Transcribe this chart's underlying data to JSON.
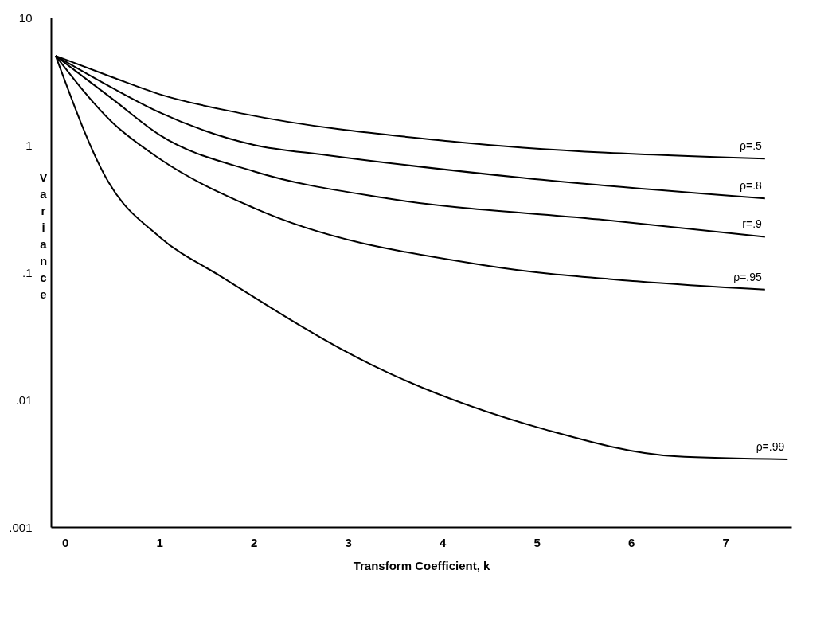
{
  "chart_data": {
    "type": "line",
    "xlabel": "Transform Coefficient, k",
    "ylabel": "Variance",
    "log": "y",
    "grid": false,
    "legend": false,
    "marker": "none",
    "line_style": "solid",
    "xlim": [
      -0.15,
      7.7
    ],
    "xticks": [
      0,
      1,
      2,
      3,
      4,
      5,
      6,
      7
    ],
    "ylim": [
      0.001,
      10
    ],
    "yticks": [
      10,
      1,
      {
        "value": 0.1,
        "label": ".1"
      },
      {
        "value": 0.01,
        "label": ".01"
      },
      {
        "value": 0.001,
        "label": ".001"
      }
    ],
    "series": [
      {
        "name": "ρ=.5",
        "color": "#000000",
        "x": [
          -0.1,
          0.5,
          1,
          1.9,
          4.06,
          7.42
        ],
        "values": [
          5,
          3.4,
          2.5,
          1.75,
          1.07,
          0.78
        ]
      },
      {
        "name": "ρ=.8",
        "color": "#000000",
        "x": [
          -0.1,
          0.5,
          1,
          2,
          2.78,
          4.86,
          7.42
        ],
        "values": [
          5,
          2.8,
          1.8,
          1.0,
          0.83,
          0.55,
          0.38
        ]
      },
      {
        "name": "r=.9",
        "color": "#000000",
        "x": [
          -0.1,
          0.5,
          1,
          2,
          3.42,
          5.66,
          7.42
        ],
        "values": [
          5,
          2.3,
          1.2,
          0.62,
          0.38,
          0.26,
          0.19
        ]
      },
      {
        "name": "ρ=.95",
        "color": "#000000",
        "x": [
          -0.1,
          0.5,
          1,
          2,
          4.46,
          6.06,
          7.42
        ],
        "values": [
          5,
          1.5,
          0.78,
          0.32,
          0.113,
          0.085,
          0.073
        ]
      },
      {
        "name": "ρ=.99",
        "color": "#000000",
        "x": [
          -0.1,
          0.46,
          1,
          1.66,
          3.26,
          5.1,
          6.46,
          7.66
        ],
        "values": [
          5,
          0.51,
          0.19,
          0.092,
          0.0186,
          0.0058,
          0.0036,
          0.0034
        ]
      }
    ]
  }
}
